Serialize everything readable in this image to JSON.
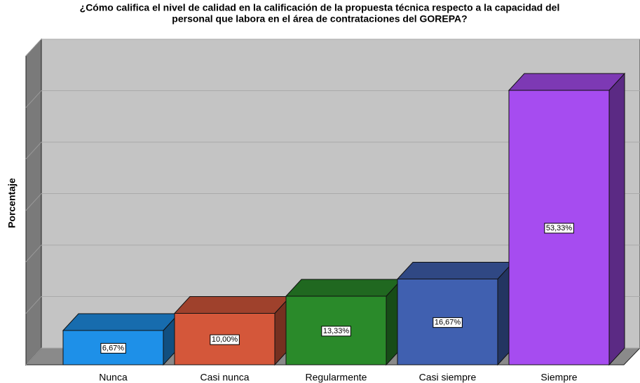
{
  "chart_data": {
    "type": "bar3d",
    "title": [
      "¿Cómo califica el nivel de calidad en la calificación de la propuesta técnica respecto a la capacidad del",
      "personal que labora en el área de contrataciones del GOREPA?"
    ],
    "ylabel": "Porcentaje",
    "categories": [
      "Nunca",
      "Casi nunca",
      "Regularmente",
      "Casi siempre",
      "Siempre"
    ],
    "values": [
      6.67,
      10.0,
      13.33,
      16.67,
      53.33
    ],
    "value_labels": [
      "6,67%",
      "10,00%",
      "13,33%",
      "16,67%",
      "53,33%"
    ],
    "colors": [
      "#1e90e8",
      "#d4573a",
      "#2a8a2a",
      "#4060b0",
      "#a64cf0"
    ],
    "ylim": [
      0,
      60
    ],
    "yticks": [
      0,
      10,
      20,
      30,
      40,
      50,
      60
    ],
    "grid": true
  }
}
